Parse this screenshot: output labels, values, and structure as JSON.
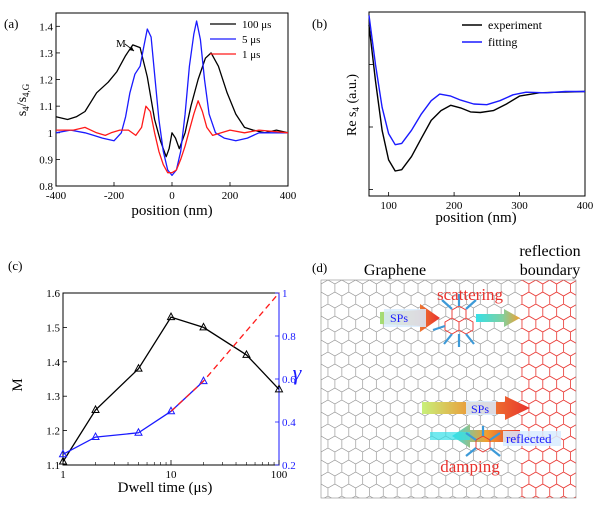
{
  "chart_data": [
    {
      "type": "line",
      "panel_label": "(a)",
      "xlabel": "position (nm)",
      "ylabel_main": "s",
      "ylabel_sub": "4",
      "ylabel_slash": "/s",
      "ylabel_sub2": "4,G",
      "xlim": [
        -400,
        400
      ],
      "ylim": [
        0.8,
        1.45
      ],
      "xticks": [
        -400,
        -200,
        0,
        200,
        400
      ],
      "yticks": [
        0.8,
        0.9,
        1.0,
        1.1,
        1.2,
        1.3,
        1.4
      ],
      "ytick_labels": [
        "0.8",
        "0.9",
        "1",
        "1.1",
        "1.2",
        "1.3",
        "1.4"
      ],
      "annotation": "M",
      "series": [
        {
          "name": "100 μs",
          "color": "#000000",
          "points": [
            [
              -400,
              1.06
            ],
            [
              -360,
              1.05
            ],
            [
              -330,
              1.06
            ],
            [
              -300,
              1.08
            ],
            [
              -260,
              1.15
            ],
            [
              -220,
              1.19
            ],
            [
              -190,
              1.23
            ],
            [
              -160,
              1.29
            ],
            [
              -135,
              1.33
            ],
            [
              -110,
              1.32
            ],
            [
              -85,
              1.21
            ],
            [
              -60,
              1.05
            ],
            [
              -40,
              0.97
            ],
            [
              -20,
              0.91
            ],
            [
              -10,
              0.94
            ],
            [
              0,
              1.0
            ],
            [
              12,
              0.98
            ],
            [
              25,
              0.94
            ],
            [
              45,
              1.0
            ],
            [
              65,
              1.1
            ],
            [
              90,
              1.2
            ],
            [
              115,
              1.28
            ],
            [
              135,
              1.3
            ],
            [
              160,
              1.25
            ],
            [
              190,
              1.15
            ],
            [
              220,
              1.07
            ],
            [
              250,
              1.02
            ],
            [
              280,
              1.01
            ],
            [
              320,
              1.0
            ],
            [
              360,
              1.01
            ],
            [
              400,
              1.0
            ]
          ]
        },
        {
          "name": "5 μs",
          "color": "#1a1aff",
          "points": [
            [
              -400,
              1.0
            ],
            [
              -350,
              1.01
            ],
            [
              -300,
              1.0
            ],
            [
              -270,
              0.99
            ],
            [
              -240,
              0.98
            ],
            [
              -200,
              0.97
            ],
            [
              -175,
              1.0
            ],
            [
              -160,
              1.06
            ],
            [
              -145,
              1.15
            ],
            [
              -128,
              1.22
            ],
            [
              -110,
              1.25
            ],
            [
              -98,
              1.32
            ],
            [
              -85,
              1.39
            ],
            [
              -72,
              1.36
            ],
            [
              -60,
              1.22
            ],
            [
              -45,
              1.05
            ],
            [
              -30,
              0.93
            ],
            [
              -15,
              0.86
            ],
            [
              0,
              0.84
            ],
            [
              15,
              0.86
            ],
            [
              30,
              0.93
            ],
            [
              45,
              1.07
            ],
            [
              60,
              1.25
            ],
            [
              75,
              1.37
            ],
            [
              85,
              1.42
            ],
            [
              98,
              1.35
            ],
            [
              112,
              1.2
            ],
            [
              128,
              1.07
            ],
            [
              150,
              1.0
            ],
            [
              180,
              0.98
            ],
            [
              220,
              0.97
            ],
            [
              260,
              0.98
            ],
            [
              300,
              1.0
            ],
            [
              350,
              1.0
            ],
            [
              400,
              1.0
            ]
          ]
        },
        {
          "name": "1 μs",
          "color": "#ff1a1a",
          "points": [
            [
              -400,
              1.01
            ],
            [
              -340,
              1.01
            ],
            [
              -300,
              1.02
            ],
            [
              -260,
              1.0
            ],
            [
              -230,
              0.99
            ],
            [
              -210,
              1.0
            ],
            [
              -180,
              1.01
            ],
            [
              -150,
              1.01
            ],
            [
              -125,
              0.99
            ],
            [
              -105,
              1.02
            ],
            [
              -90,
              1.1
            ],
            [
              -75,
              1.08
            ],
            [
              -60,
              1.0
            ],
            [
              -45,
              0.93
            ],
            [
              -30,
              0.88
            ],
            [
              -15,
              0.85
            ],
            [
              0,
              0.85
            ],
            [
              15,
              0.86
            ],
            [
              30,
              0.9
            ],
            [
              45,
              0.95
            ],
            [
              60,
              1.01
            ],
            [
              75,
              1.07
            ],
            [
              90,
              1.12
            ],
            [
              105,
              1.08
            ],
            [
              120,
              1.02
            ],
            [
              140,
              0.99
            ],
            [
              170,
              1.0
            ],
            [
              200,
              1.01
            ],
            [
              250,
              1.0
            ],
            [
              300,
              1.01
            ],
            [
              400,
              1.0
            ]
          ]
        }
      ]
    },
    {
      "type": "line",
      "panel_label": "(b)",
      "xlabel": "position (nm)",
      "ylabel_main": "Re s",
      "ylabel_sub": "4",
      "ylabel_tail": " (a.u.)",
      "xlim": [
        70,
        400
      ],
      "ylim": [
        -1.6,
        1.2
      ],
      "xticks": [
        100,
        200,
        300,
        400
      ],
      "series": [
        {
          "name": "experiment",
          "color": "#000000",
          "points": [
            [
              70,
              1.0
            ],
            [
              80,
              0.15
            ],
            [
              90,
              -0.6
            ],
            [
              100,
              -1.05
            ],
            [
              110,
              -1.22
            ],
            [
              120,
              -1.2
            ],
            [
              135,
              -1.0
            ],
            [
              150,
              -0.72
            ],
            [
              165,
              -0.45
            ],
            [
              180,
              -0.3
            ],
            [
              195,
              -0.22
            ],
            [
              210,
              -0.26
            ],
            [
              225,
              -0.32
            ],
            [
              240,
              -0.33
            ],
            [
              260,
              -0.3
            ],
            [
              280,
              -0.2
            ],
            [
              300,
              -0.08
            ],
            [
              330,
              -0.03
            ],
            [
              360,
              -0.02
            ],
            [
              400,
              -0.01
            ]
          ]
        },
        {
          "name": "fitting",
          "color": "#1a1aff",
          "points": [
            [
              70,
              1.15
            ],
            [
              80,
              0.4
            ],
            [
              90,
              -0.25
            ],
            [
              100,
              -0.65
            ],
            [
              110,
              -0.82
            ],
            [
              120,
              -0.8
            ],
            [
              135,
              -0.6
            ],
            [
              150,
              -0.35
            ],
            [
              165,
              -0.15
            ],
            [
              178,
              -0.05
            ],
            [
              195,
              -0.08
            ],
            [
              210,
              -0.14
            ],
            [
              230,
              -0.2
            ],
            [
              250,
              -0.21
            ],
            [
              270,
              -0.15
            ],
            [
              290,
              -0.06
            ],
            [
              310,
              -0.02
            ],
            [
              340,
              -0.03
            ],
            [
              370,
              -0.01
            ],
            [
              400,
              -0.01
            ]
          ]
        }
      ]
    },
    {
      "type": "line",
      "panel_label": "(c)",
      "xlabel": "Dwell time (μs)",
      "ylabel_left": "M",
      "ylabel_right": "γ",
      "xscale": "log",
      "xlim": [
        1,
        100
      ],
      "ylim_left": [
        1.1,
        1.6
      ],
      "ylim_right": [
        0.2,
        1.0
      ],
      "xtick_labels": [
        "1",
        "10",
        "100"
      ],
      "xtick_values": [
        1,
        10,
        100
      ],
      "yticks_left": [
        1.1,
        1.2,
        1.3,
        1.4,
        1.5,
        1.6
      ],
      "yticks_right": [
        0.2,
        0.4,
        0.6,
        0.8,
        1.0
      ],
      "ytick_labels_right": [
        "0.2",
        "0.4",
        "0.6",
        "0.8",
        "1"
      ],
      "series": [
        {
          "name": "M",
          "axis": "left",
          "color": "#000000",
          "marker": "triangle",
          "x": [
            1,
            2,
            5,
            10,
            20,
            50,
            100
          ],
          "y": [
            1.11,
            1.26,
            1.38,
            1.53,
            1.5,
            1.42,
            1.32
          ]
        },
        {
          "name": "γ",
          "axis": "right",
          "color": "#1a1aff",
          "marker": "triangle",
          "x": [
            1,
            2,
            5,
            10,
            20
          ],
          "y": [
            0.25,
            0.33,
            0.35,
            0.45,
            0.59
          ]
        },
        {
          "name": "γ extrapolation",
          "axis": "right",
          "color": "#ff1a1a",
          "style": "dashed",
          "x": [
            10,
            20,
            100
          ],
          "y": [
            0.45,
            0.59,
            1.0
          ]
        }
      ]
    }
  ],
  "diagram": {
    "panel_label": "(d)",
    "graphene_label": "Graphene",
    "boundary_label_line1": "reflection",
    "boundary_label_line2": "boundary",
    "scattering_label": "scattering",
    "sps_label_top": "SPs",
    "sps_label_bottom": "SPs",
    "reflected_label": "reflected",
    "damping_label": "damping"
  }
}
